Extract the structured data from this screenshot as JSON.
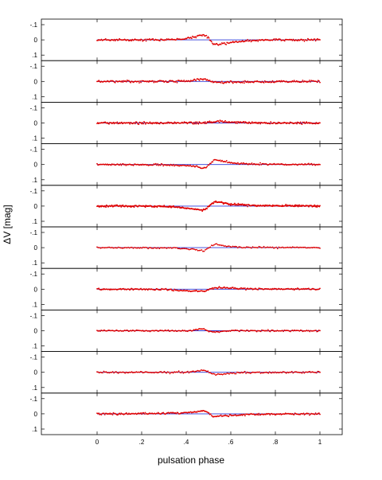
{
  "chart_data": {
    "type": "scatter",
    "panels": 10,
    "xlabel": "pulsation phase",
    "ylabel": "ΔV [mag]",
    "xlim": [
      -0.25,
      1.1
    ],
    "ylim": [
      0.1,
      -0.1
    ],
    "x_ticks": [
      0,
      0.2,
      0.4,
      0.6,
      0.8,
      1
    ],
    "x_tick_labels": [
      "0",
      ".2",
      ".4",
      ".6",
      ".8",
      "1"
    ],
    "y_ticks": [
      -0.1,
      0,
      0.1
    ],
    "y_tick_labels": [
      "-.1",
      "0",
      ".1"
    ],
    "reference_line": {
      "y": 0,
      "color": "#2f3bd8"
    },
    "point_color": "#e00000",
    "series": [
      {
        "profile": [
          [
            0,
            0
          ],
          [
            0.3,
            0
          ],
          [
            0.38,
            -0.006
          ],
          [
            0.43,
            -0.018
          ],
          [
            0.47,
            -0.03
          ],
          [
            0.49,
            -0.026
          ],
          [
            0.505,
            0.0
          ],
          [
            0.52,
            0.028
          ],
          [
            0.55,
            0.03
          ],
          [
            0.6,
            0.016
          ],
          [
            0.7,
            0.004
          ],
          [
            0.8,
            0
          ],
          [
            1,
            0
          ]
        ],
        "noise": 0.007,
        "points": 260
      },
      {
        "profile": [
          [
            0,
            0
          ],
          [
            0.3,
            0
          ],
          [
            0.42,
            -0.004
          ],
          [
            0.46,
            -0.014
          ],
          [
            0.48,
            -0.018
          ],
          [
            0.5,
            -0.006
          ],
          [
            0.53,
            0.004
          ],
          [
            0.6,
            0.004
          ],
          [
            0.7,
            0.002
          ],
          [
            1,
            0
          ]
        ],
        "noise": 0.008,
        "points": 260
      },
      {
        "profile": [
          [
            0,
            0
          ],
          [
            0.45,
            0
          ],
          [
            0.5,
            -0.004
          ],
          [
            0.55,
            -0.01
          ],
          [
            0.62,
            -0.004
          ],
          [
            0.7,
            0
          ],
          [
            1,
            0
          ]
        ],
        "noise": 0.007,
        "points": 300
      },
      {
        "profile": [
          [
            0,
            0
          ],
          [
            0.3,
            0.002
          ],
          [
            0.4,
            0.008
          ],
          [
            0.45,
            0.015
          ],
          [
            0.47,
            0.024
          ],
          [
            0.49,
            0.018
          ],
          [
            0.51,
            -0.01
          ],
          [
            0.53,
            -0.03
          ],
          [
            0.56,
            -0.026
          ],
          [
            0.6,
            -0.012
          ],
          [
            0.7,
            -0.002
          ],
          [
            1,
            0
          ]
        ],
        "noise": 0.006,
        "points": 240
      },
      {
        "profile": [
          [
            0,
            0
          ],
          [
            0.3,
            0.002
          ],
          [
            0.38,
            0.01
          ],
          [
            0.44,
            0.02
          ],
          [
            0.47,
            0.026
          ],
          [
            0.49,
            0.016
          ],
          [
            0.51,
            -0.01
          ],
          [
            0.53,
            -0.03
          ],
          [
            0.56,
            -0.024
          ],
          [
            0.6,
            -0.012
          ],
          [
            0.7,
            -0.004
          ],
          [
            1,
            0
          ]
        ],
        "noise": 0.006,
        "points": 380
      },
      {
        "profile": [
          [
            0,
            0
          ],
          [
            0.35,
            0.002
          ],
          [
            0.42,
            0.01
          ],
          [
            0.46,
            0.018
          ],
          [
            0.48,
            0.022
          ],
          [
            0.5,
            0.004
          ],
          [
            0.52,
            -0.016
          ],
          [
            0.54,
            -0.022
          ],
          [
            0.58,
            -0.01
          ],
          [
            0.65,
            -0.002
          ],
          [
            1,
            0
          ]
        ],
        "noise": 0.005,
        "points": 180
      },
      {
        "profile": [
          [
            0,
            0
          ],
          [
            0.3,
            0.002
          ],
          [
            0.4,
            0.01
          ],
          [
            0.46,
            0.014
          ],
          [
            0.49,
            0.01
          ],
          [
            0.51,
            -0.004
          ],
          [
            0.53,
            -0.01
          ],
          [
            0.6,
            -0.006
          ],
          [
            0.7,
            -0.002
          ],
          [
            1,
            0
          ]
        ],
        "noise": 0.006,
        "points": 260
      },
      {
        "profile": [
          [
            0,
            0
          ],
          [
            0.42,
            0
          ],
          [
            0.46,
            -0.01
          ],
          [
            0.48,
            -0.012
          ],
          [
            0.5,
            0.004
          ],
          [
            0.52,
            0.008
          ],
          [
            0.56,
            0.004
          ],
          [
            0.6,
            0
          ],
          [
            1,
            0
          ]
        ],
        "noise": 0.005,
        "points": 220
      },
      {
        "profile": [
          [
            0,
            0
          ],
          [
            0.4,
            0
          ],
          [
            0.46,
            -0.01
          ],
          [
            0.48,
            -0.014
          ],
          [
            0.5,
            -0.004
          ],
          [
            0.52,
            0.012
          ],
          [
            0.54,
            0.018
          ],
          [
            0.58,
            0.008
          ],
          [
            0.65,
            0.002
          ],
          [
            1,
            0
          ]
        ],
        "noise": 0.006,
        "points": 200
      },
      {
        "profile": [
          [
            0,
            0
          ],
          [
            0.3,
            -0.002
          ],
          [
            0.4,
            -0.008
          ],
          [
            0.45,
            -0.014
          ],
          [
            0.48,
            -0.02
          ],
          [
            0.5,
            -0.006
          ],
          [
            0.52,
            0.018
          ],
          [
            0.55,
            0.016
          ],
          [
            0.6,
            0.01
          ],
          [
            0.7,
            0.003
          ],
          [
            1,
            0
          ]
        ],
        "noise": 0.006,
        "points": 260
      }
    ]
  }
}
